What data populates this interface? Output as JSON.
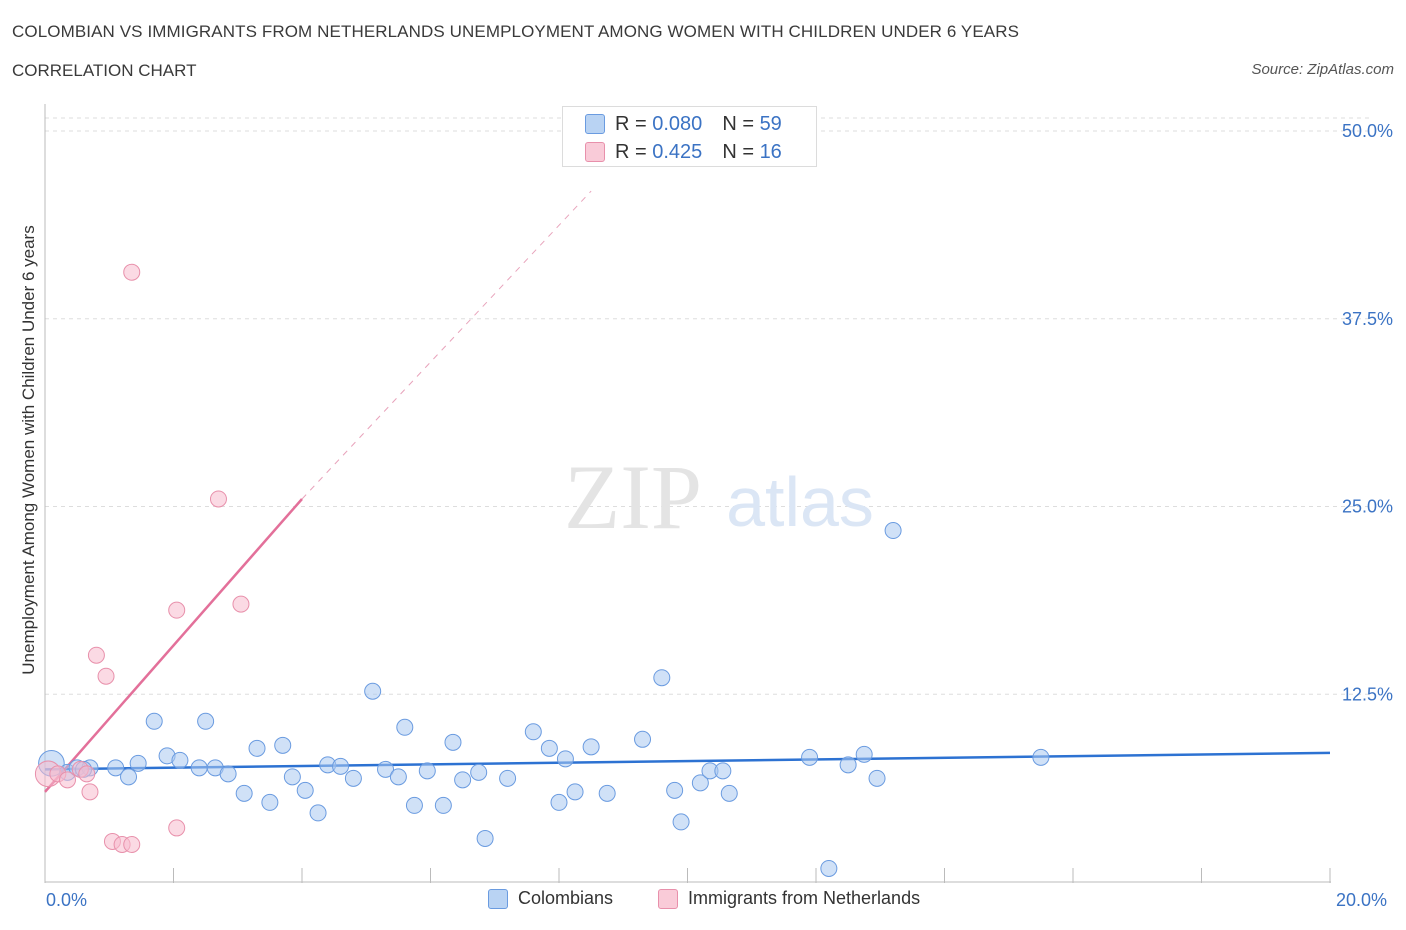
{
  "header": {
    "title": "COLOMBIAN VS IMMIGRANTS FROM NETHERLANDS UNEMPLOYMENT AMONG WOMEN WITH CHILDREN UNDER 6 YEARS",
    "subtitle": "CORRELATION CHART",
    "source": "Source: ZipAtlas.com"
  },
  "watermark": {
    "zip": "ZIP",
    "atlas": "atlas"
  },
  "stats_legend": {
    "rows": [
      {
        "r_label": "R =",
        "r_value": "0.080",
        "n_label": "N =",
        "n_value": "59"
      },
      {
        "r_label": "R =",
        "r_value": "0.425",
        "n_label": "N =",
        "n_value": "16"
      }
    ]
  },
  "colors": {
    "blue_fill": "#a9c8f0",
    "blue_stroke": "#6a9be0",
    "blue_line": "#2d72d2",
    "pink_fill": "#f7bccd",
    "pink_stroke": "#e890ab",
    "pink_line": "#e3709a",
    "grid": "#dddddd",
    "tick_label": "#3b73c4"
  },
  "chart_data": {
    "type": "scatter",
    "title": "COLOMBIAN VS IMMIGRANTS FROM NETHERLANDS UNEMPLOYMENT AMONG WOMEN WITH CHILDREN UNDER 6 YEARS",
    "xlabel": "",
    "ylabel": "Unemployment Among Women with Children Under 6 years",
    "xlim": [
      0,
      20
    ],
    "ylim": [
      0,
      50
    ],
    "x_tick_labels": [
      "0.0%",
      "20.0%"
    ],
    "y_ticks": [
      12.5,
      25.0,
      37.5,
      50.0
    ],
    "y_tick_labels": [
      "12.5%",
      "25.0%",
      "37.5%",
      "50.0%"
    ],
    "grid": true,
    "legend": [
      "Colombians",
      "Immigrants from Netherlands"
    ],
    "series": [
      {
        "name": "Colombians",
        "trend": {
          "x": [
            0.0,
            20.0
          ],
          "y": [
            7.5,
            8.6
          ]
        },
        "points": [
          [
            0.1,
            7.9,
            1.6
          ],
          [
            0.35,
            7.3,
            1
          ],
          [
            0.5,
            7.6,
            1
          ],
          [
            0.7,
            7.6,
            1
          ],
          [
            1.1,
            7.6,
            1
          ],
          [
            1.3,
            7.0,
            1
          ],
          [
            1.45,
            7.9,
            1
          ],
          [
            1.7,
            10.7,
            1
          ],
          [
            1.9,
            8.4,
            1
          ],
          [
            2.1,
            8.1,
            1
          ],
          [
            2.4,
            7.6,
            1
          ],
          [
            2.5,
            10.7,
            1
          ],
          [
            2.65,
            7.6,
            1
          ],
          [
            2.85,
            7.2,
            1
          ],
          [
            3.1,
            5.9,
            1
          ],
          [
            3.3,
            8.9,
            1
          ],
          [
            3.5,
            5.3,
            1
          ],
          [
            3.7,
            9.1,
            1
          ],
          [
            3.85,
            7.0,
            1
          ],
          [
            4.05,
            6.1,
            1
          ],
          [
            4.25,
            4.6,
            1
          ],
          [
            4.4,
            7.8,
            1
          ],
          [
            4.6,
            7.7,
            1
          ],
          [
            4.8,
            6.9,
            1
          ],
          [
            5.1,
            12.7,
            1
          ],
          [
            5.3,
            7.5,
            1
          ],
          [
            5.5,
            7.0,
            1
          ],
          [
            5.6,
            10.3,
            1
          ],
          [
            5.75,
            5.1,
            1
          ],
          [
            5.95,
            7.4,
            1
          ],
          [
            6.2,
            5.1,
            1
          ],
          [
            6.35,
            9.3,
            1
          ],
          [
            6.5,
            6.8,
            1
          ],
          [
            6.75,
            7.3,
            1
          ],
          [
            6.85,
            2.9,
            1
          ],
          [
            7.2,
            6.9,
            1
          ],
          [
            7.6,
            10.0,
            1
          ],
          [
            7.85,
            8.9,
            1
          ],
          [
            8.0,
            5.3,
            1
          ],
          [
            8.25,
            6.0,
            1
          ],
          [
            8.1,
            8.2,
            1
          ],
          [
            8.5,
            9.0,
            1
          ],
          [
            8.75,
            5.9,
            1
          ],
          [
            9.3,
            9.5,
            1
          ],
          [
            9.6,
            13.6,
            1
          ],
          [
            9.8,
            6.1,
            1
          ],
          [
            9.9,
            4.0,
            1
          ],
          [
            10.2,
            6.6,
            1
          ],
          [
            10.35,
            7.4,
            1
          ],
          [
            10.55,
            7.4,
            1
          ],
          [
            10.65,
            5.9,
            1
          ],
          [
            11.9,
            8.3,
            1
          ],
          [
            12.2,
            0.9,
            1
          ],
          [
            12.5,
            7.8,
            1
          ],
          [
            12.75,
            8.5,
            1
          ],
          [
            12.95,
            6.9,
            1
          ],
          [
            13.2,
            23.4,
            1
          ],
          [
            15.5,
            8.3,
            1
          ],
          [
            0.6,
            7.5,
            1
          ]
        ]
      },
      {
        "name": "Immigrants from Netherlands",
        "trend": {
          "x": [
            0.0,
            4.0
          ],
          "y": [
            6.0,
            25.5
          ],
          "dashed_x": [
            4.0,
            8.5
          ],
          "dashed_y": [
            25.5,
            46.0
          ]
        },
        "points": [
          [
            0.05,
            7.2,
            1.6
          ],
          [
            0.2,
            7.2,
            1
          ],
          [
            0.35,
            6.8,
            1
          ],
          [
            0.55,
            7.5,
            1
          ],
          [
            0.65,
            7.2,
            1
          ],
          [
            0.7,
            6.0,
            1
          ],
          [
            0.8,
            15.1,
            1
          ],
          [
            0.95,
            13.7,
            1
          ],
          [
            1.05,
            2.7,
            1
          ],
          [
            1.2,
            2.5,
            1
          ],
          [
            1.35,
            2.5,
            1
          ],
          [
            1.35,
            40.6,
            1
          ],
          [
            2.05,
            3.6,
            1
          ],
          [
            2.05,
            18.1,
            1
          ],
          [
            2.7,
            25.5,
            1
          ],
          [
            3.05,
            18.5,
            1
          ]
        ]
      }
    ]
  }
}
